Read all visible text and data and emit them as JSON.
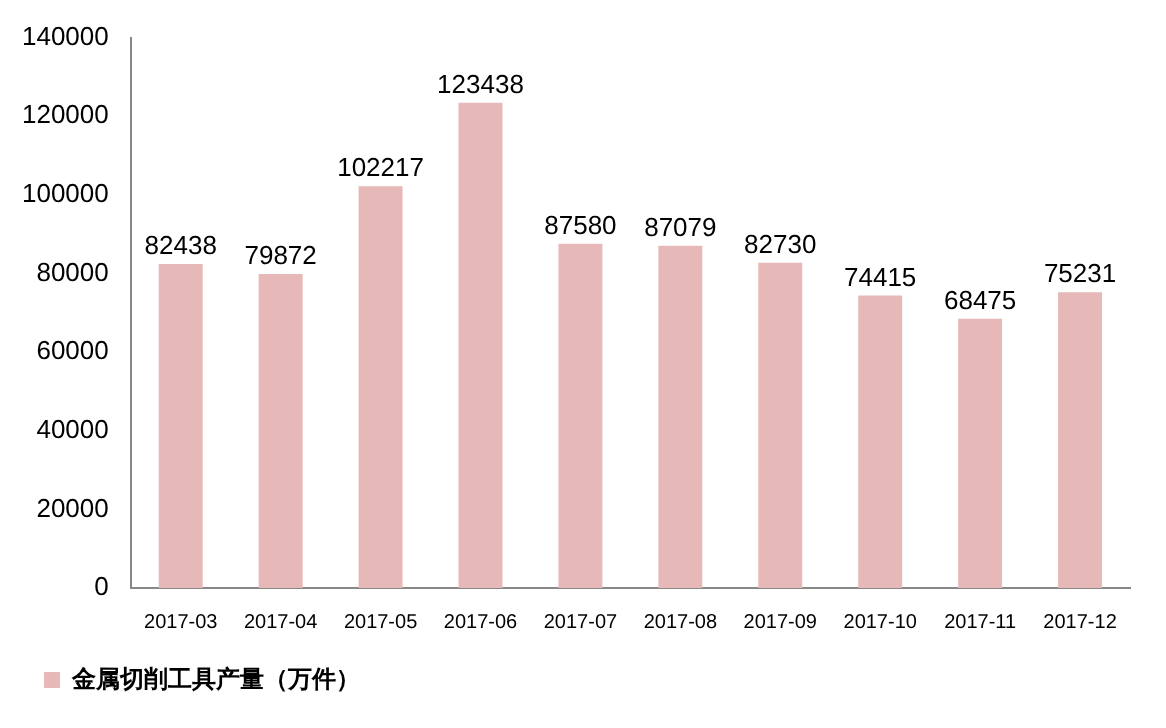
{
  "chart_data": {
    "type": "bar",
    "categories": [
      "2017-03",
      "2017-04",
      "2017-05",
      "2017-06",
      "2017-07",
      "2017-08",
      "2017-09",
      "2017-10",
      "2017-11",
      "2017-12"
    ],
    "series": [
      {
        "name": "金属切削工具产量（万件）",
        "color": "#e6b9b8",
        "values": [
          82438,
          79872,
          102217,
          123438,
          87580,
          87079,
          82730,
          74415,
          68475,
          75231
        ]
      }
    ],
    "ylim": [
      0,
      140000
    ],
    "yticks": [
      0,
      20000,
      40000,
      60000,
      80000,
      100000,
      120000,
      140000
    ],
    "data_labels": true,
    "legend": "bottom left"
  }
}
